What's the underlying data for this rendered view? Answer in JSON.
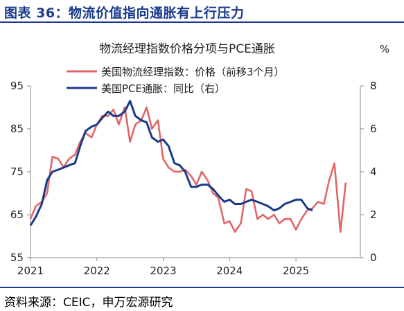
{
  "figure": {
    "title": "图表 36：物流价值指向通胀有上行压力",
    "source": "资料来源：CEIC，申万宏源研究"
  },
  "colors": {
    "title": "#1a3a8a",
    "logistics": "#e06666",
    "pce": "#1a3a8a"
  },
  "chart_data": {
    "type": "line",
    "title": "物流经理指数价格分项与PCE通胀",
    "right_unit": "%",
    "legend_placement": "top-center",
    "grid": false,
    "x_ticks": [
      "2021",
      "2022",
      "2023",
      "2024",
      "2025"
    ],
    "x_range": [
      2021.0,
      2025.97
    ],
    "y_left": {
      "range": [
        55,
        95
      ],
      "ticks": [
        "55",
        "65",
        "75",
        "85",
        "95"
      ]
    },
    "y_right": {
      "range": [
        0,
        8
      ],
      "ticks": [
        "0",
        "2",
        "4",
        "6",
        "8"
      ]
    },
    "series": [
      {
        "name": "美国物流经理指数：价格（前移3个月）",
        "axis": "left",
        "color": "#e06666",
        "x": [
          2021.0,
          2021.08,
          2021.17,
          2021.25,
          2021.33,
          2021.42,
          2021.5,
          2021.58,
          2021.67,
          2021.75,
          2021.83,
          2021.92,
          2022.0,
          2022.08,
          2022.17,
          2022.25,
          2022.33,
          2022.42,
          2022.5,
          2022.58,
          2022.67,
          2022.75,
          2022.83,
          2022.92,
          2023.0,
          2023.08,
          2023.17,
          2023.25,
          2023.33,
          2023.42,
          2023.5,
          2023.58,
          2023.67,
          2023.75,
          2023.83,
          2023.92,
          2024.0,
          2024.08,
          2024.17,
          2024.25,
          2024.33,
          2024.42,
          2024.5,
          2024.58,
          2024.67,
          2024.75,
          2024.83,
          2024.92,
          2025.0,
          2025.08,
          2025.17,
          2025.25,
          2025.33,
          2025.42,
          2025.5,
          2025.58,
          2025.67,
          2025.75
        ],
        "values": [
          64,
          67,
          68,
          70,
          78.5,
          78,
          76,
          78,
          79,
          82,
          84,
          83,
          86,
          88,
          88,
          89.5,
          86,
          90,
          82,
          86,
          87,
          90,
          85,
          87,
          78,
          76,
          75,
          75,
          75.5,
          74,
          72,
          75,
          73,
          70,
          69,
          63,
          63.5,
          61,
          63,
          71,
          70.5,
          64,
          65,
          64,
          65,
          63,
          64,
          64,
          61.5,
          64,
          66,
          66.5,
          68,
          67.5,
          73,
          77,
          61,
          72.5
        ]
      },
      {
        "name": "美国PCE通胀：同比（右）",
        "axis": "right",
        "color": "#1a3a8a",
        "x": [
          2021.0,
          2021.08,
          2021.17,
          2021.25,
          2021.33,
          2021.42,
          2021.5,
          2021.58,
          2021.67,
          2021.75,
          2021.83,
          2021.92,
          2022.0,
          2022.08,
          2022.17,
          2022.25,
          2022.33,
          2022.42,
          2022.5,
          2022.58,
          2022.67,
          2022.75,
          2022.83,
          2022.92,
          2023.0,
          2023.08,
          2023.17,
          2023.25,
          2023.33,
          2023.42,
          2023.5,
          2023.58,
          2023.67,
          2023.75,
          2023.83,
          2023.92,
          2024.0,
          2024.08,
          2024.17,
          2024.25,
          2024.33,
          2024.42,
          2024.5,
          2024.58,
          2024.67,
          2024.75,
          2024.83,
          2024.92,
          2025.0,
          2025.08,
          2025.17,
          2025.25
        ],
        "values": [
          1.5,
          1.9,
          2.5,
          3.6,
          4.0,
          4.1,
          4.2,
          4.3,
          4.4,
          5.2,
          5.9,
          6.1,
          6.2,
          6.5,
          6.8,
          6.6,
          6.6,
          6.8,
          7.3,
          6.6,
          6.4,
          6.3,
          5.6,
          5.4,
          5.5,
          5.2,
          4.4,
          4.3,
          4.0,
          3.3,
          3.3,
          3.4,
          3.4,
          3.2,
          2.9,
          2.6,
          2.7,
          2.5,
          2.5,
          2.6,
          2.7,
          2.6,
          2.5,
          2.4,
          2.2,
          2.3,
          2.5,
          2.6,
          2.7,
          2.7,
          2.3,
          2.2
        ]
      }
    ]
  }
}
